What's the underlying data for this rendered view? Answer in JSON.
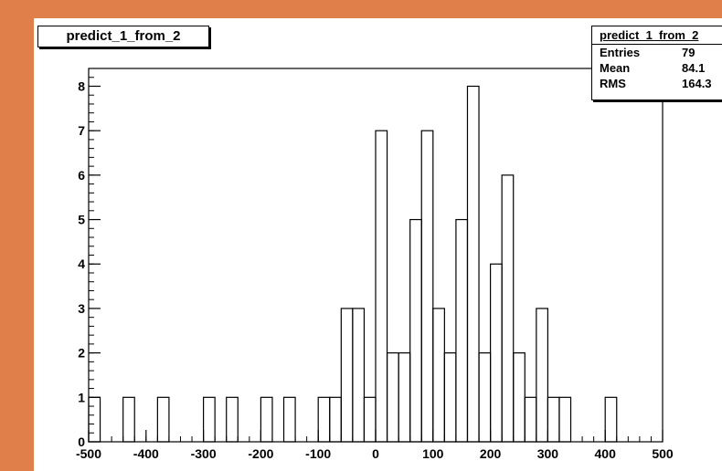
{
  "chart_data": {
    "type": "bar",
    "title": "predict_1_from_2",
    "xlim": [
      -500,
      500
    ],
    "ylim": [
      0,
      8.4
    ],
    "bin_width": 20,
    "x_ticks": [
      -500,
      -400,
      -300,
      -200,
      -100,
      0,
      100,
      200,
      300,
      400,
      500
    ],
    "y_ticks": [
      0,
      1,
      2,
      3,
      4,
      5,
      6,
      7,
      8
    ],
    "bins": [
      {
        "x": -500,
        "value": 1
      },
      {
        "x": -440,
        "value": 1
      },
      {
        "x": -380,
        "value": 1
      },
      {
        "x": -300,
        "value": 1
      },
      {
        "x": -260,
        "value": 1
      },
      {
        "x": -200,
        "value": 1
      },
      {
        "x": -160,
        "value": 1
      },
      {
        "x": -100,
        "value": 1
      },
      {
        "x": -80,
        "value": 1
      },
      {
        "x": -60,
        "value": 3
      },
      {
        "x": -40,
        "value": 3
      },
      {
        "x": -20,
        "value": 1
      },
      {
        "x": 0,
        "value": 7
      },
      {
        "x": 20,
        "value": 2
      },
      {
        "x": 40,
        "value": 2
      },
      {
        "x": 60,
        "value": 5
      },
      {
        "x": 80,
        "value": 7
      },
      {
        "x": 100,
        "value": 3
      },
      {
        "x": 120,
        "value": 2
      },
      {
        "x": 140,
        "value": 5
      },
      {
        "x": 160,
        "value": 8
      },
      {
        "x": 180,
        "value": 2
      },
      {
        "x": 200,
        "value": 4
      },
      {
        "x": 220,
        "value": 6
      },
      {
        "x": 240,
        "value": 2
      },
      {
        "x": 260,
        "value": 1
      },
      {
        "x": 280,
        "value": 3
      },
      {
        "x": 300,
        "value": 1
      },
      {
        "x": 320,
        "value": 1
      },
      {
        "x": 400,
        "value": 1
      }
    ],
    "stats": {
      "title": "predict_1_from_2",
      "rows": [
        {
          "label": "Entries",
          "value": "79"
        },
        {
          "label": "Mean",
          "value": "84.1"
        },
        {
          "label": "RMS",
          "value": "164.3"
        }
      ]
    }
  }
}
